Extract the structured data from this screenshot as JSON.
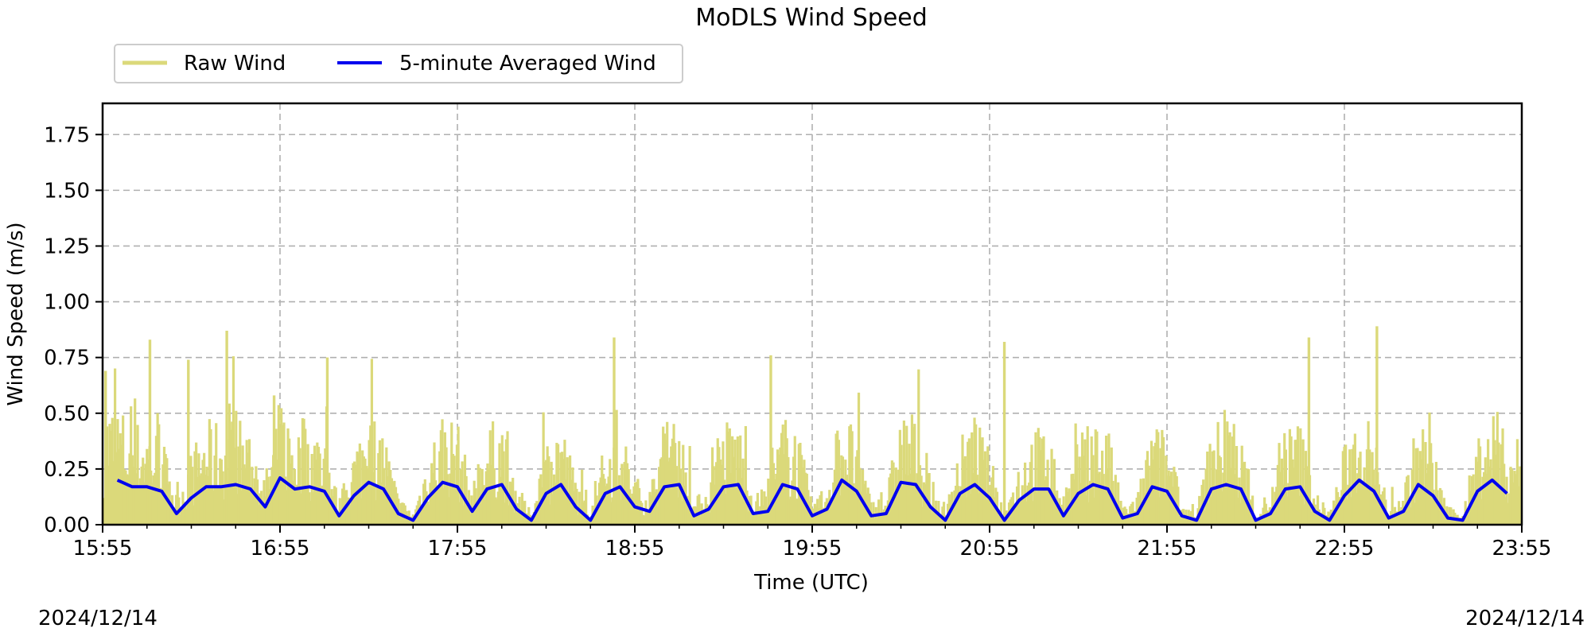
{
  "chart_data": {
    "type": "line",
    "title": "MoDLS Wind Speed",
    "xlabel": "Time (UTC)",
    "ylabel": "Wind Speed (m/s)",
    "x_range": [
      "15:55",
      "23:55"
    ],
    "xticks": [
      "15:55",
      "16:55",
      "17:55",
      "18:55",
      "19:55",
      "20:55",
      "21:55",
      "22:55",
      "23:55"
    ],
    "ylim": [
      0,
      1.89
    ],
    "yticks": [
      "0.00",
      "0.25",
      "0.50",
      "0.75",
      "1.00",
      "1.25",
      "1.50",
      "1.75"
    ],
    "grid": true,
    "legend_position": "top-left",
    "date_left": "2024/12/14",
    "date_right": "2024/12/14",
    "series": [
      {
        "name": "Raw Wind",
        "color": "#dbd97a",
        "style": "spiky high-frequency signal, mostly 0–0.4 m/s with peaks up to ~0.89 m/s",
        "peak_times": [
          "15:56",
          "16:11",
          "16:24",
          "16:37",
          "16:53",
          "17:11",
          "18:48",
          "19:41",
          "21:00",
          "22:43",
          "23:06"
        ],
        "peak_values": [
          0.69,
          0.83,
          0.74,
          0.87,
          0.58,
          0.75,
          0.84,
          0.76,
          0.82,
          0.84,
          0.89
        ]
      },
      {
        "name": "5-minute Averaged Wind",
        "color": "#0000ee",
        "times": [
          "16:00",
          "16:05",
          "16:10",
          "16:15",
          "16:20",
          "16:25",
          "16:30",
          "16:35",
          "16:40",
          "16:45",
          "16:50",
          "16:55",
          "17:00",
          "17:05",
          "17:10",
          "17:15",
          "17:20",
          "17:25",
          "17:30",
          "17:35",
          "17:40",
          "17:45",
          "17:50",
          "17:55",
          "18:00",
          "18:05",
          "18:10",
          "18:15",
          "18:20",
          "18:25",
          "18:30",
          "18:35",
          "18:40",
          "18:45",
          "18:50",
          "18:55",
          "19:00",
          "19:05",
          "19:10",
          "19:15",
          "19:20",
          "19:25",
          "19:30",
          "19:35",
          "19:40",
          "19:45",
          "19:50",
          "19:55",
          "20:00",
          "20:05",
          "20:10",
          "20:15",
          "20:20",
          "20:25",
          "20:30",
          "20:35",
          "20:40",
          "20:45",
          "20:50",
          "20:55",
          "21:00",
          "21:05",
          "21:10",
          "21:15",
          "21:20",
          "21:25",
          "21:30",
          "21:35",
          "21:40",
          "21:45",
          "21:50",
          "21:55",
          "22:00",
          "22:05",
          "22:10",
          "22:15",
          "22:20",
          "22:25",
          "22:30",
          "22:35",
          "22:40",
          "22:45",
          "22:50",
          "22:55",
          "23:00",
          "23:05",
          "23:10",
          "23:15",
          "23:20",
          "23:25",
          "23:30",
          "23:35",
          "23:40",
          "23:45",
          "23:50"
        ],
        "values": [
          0.2,
          0.17,
          0.17,
          0.15,
          0.05,
          0.12,
          0.17,
          0.17,
          0.18,
          0.16,
          0.08,
          0.21,
          0.16,
          0.17,
          0.15,
          0.04,
          0.13,
          0.19,
          0.16,
          0.05,
          0.02,
          0.12,
          0.19,
          0.17,
          0.06,
          0.16,
          0.18,
          0.07,
          0.02,
          0.14,
          0.18,
          0.08,
          0.02,
          0.14,
          0.17,
          0.08,
          0.06,
          0.17,
          0.18,
          0.04,
          0.07,
          0.17,
          0.18,
          0.05,
          0.06,
          0.18,
          0.16,
          0.04,
          0.07,
          0.2,
          0.15,
          0.04,
          0.05,
          0.19,
          0.18,
          0.08,
          0.02,
          0.14,
          0.18,
          0.12,
          0.02,
          0.11,
          0.16,
          0.16,
          0.04,
          0.14,
          0.18,
          0.16,
          0.03,
          0.05,
          0.17,
          0.15,
          0.04,
          0.02,
          0.16,
          0.18,
          0.16,
          0.02,
          0.05,
          0.16,
          0.17,
          0.06,
          0.02,
          0.13,
          0.2,
          0.15,
          0.03,
          0.06,
          0.18,
          0.13,
          0.03,
          0.02,
          0.15,
          0.2,
          0.14
        ]
      }
    ]
  }
}
